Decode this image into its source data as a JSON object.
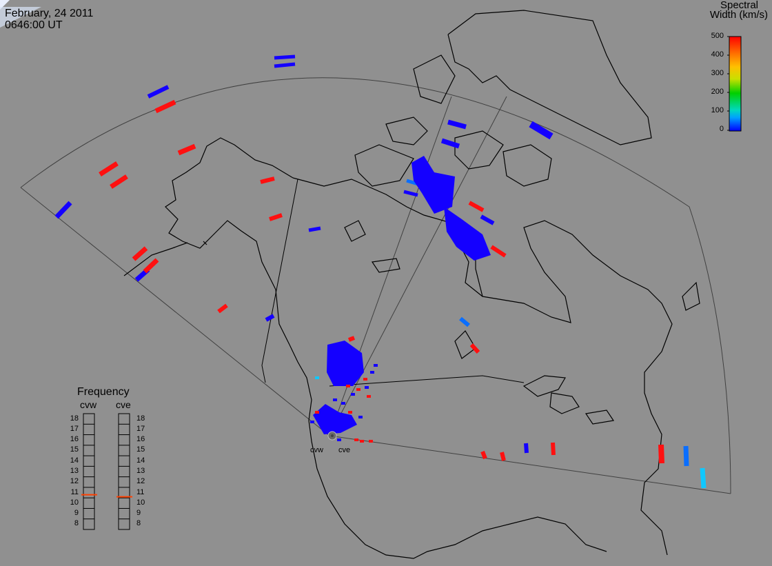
{
  "header": {
    "date": "February, 24 2011",
    "time": "0646:00 UT"
  },
  "legend": {
    "title_line1": "Spectral",
    "title_line2": "Width (km/s)",
    "ticks": [
      "500",
      "400",
      "300",
      "200",
      "100",
      "0"
    ],
    "colormap": [
      "#0000ff",
      "#00a0ff",
      "#00d8c0",
      "#00d000",
      "#c8e000",
      "#ffc000",
      "#ff7000",
      "#ff0000"
    ]
  },
  "frequency": {
    "title": "Frequency",
    "radars": [
      "cvw",
      "cve"
    ],
    "levels": [
      "18",
      "17",
      "16",
      "15",
      "14",
      "13",
      "12",
      "11",
      "10",
      "9",
      "8"
    ],
    "current": {
      "cvw": 10.8,
      "cve": 10.6
    },
    "marker_color": "#ff4000"
  },
  "radars": {
    "cvw": "cvw",
    "cve": "cve"
  },
  "colors": {
    "background": "#909090",
    "coast": "#000000",
    "low": "#1400ff",
    "high": "#ff1010",
    "mid": "#0a6eff",
    "cyan": "#10c8ff"
  }
}
